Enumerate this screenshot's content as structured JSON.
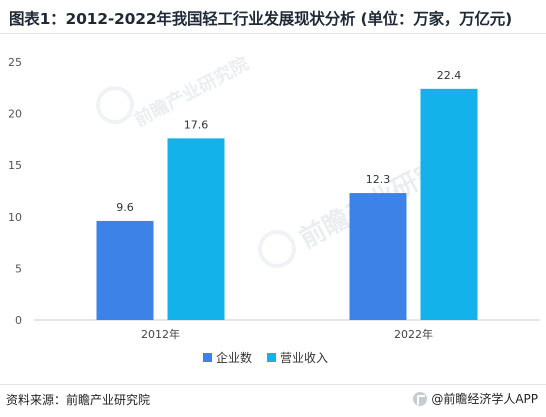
{
  "header": {
    "title": "图表1：2012-2022年我国轻工行业发展现状分析 (单位：万家，万亿元)"
  },
  "footer": {
    "source": "资料来源：前瞻产业研究院",
    "brand": "@前瞻经济学人APP"
  },
  "watermark": {
    "text": "前瞻产业研究院"
  },
  "chart_data": {
    "type": "bar",
    "categories": [
      "2012年",
      "2022年"
    ],
    "series": [
      {
        "name": "企业数",
        "values": [
          9.6,
          12.3
        ],
        "color": "#3d82e6"
      },
      {
        "name": "营业收入",
        "values": [
          17.6,
          22.4
        ],
        "color": "#14b2ea"
      }
    ],
    "ylim": [
      0,
      25
    ],
    "yticks": [
      0,
      5,
      10,
      15,
      20,
      25
    ],
    "grid": false,
    "legend": "bottom"
  }
}
